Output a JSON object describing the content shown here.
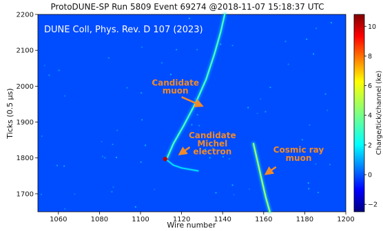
{
  "chart_data": {
    "type": "heatmap",
    "title": "ProtoDUNE-SP Run 5809 Event 69274 @2018-11-07 15:18:37 UTC",
    "xlabel": "Wire number",
    "ylabel": "Ticks (0.5 μs)",
    "xlim": [
      1050,
      1200
    ],
    "ylim": [
      1650,
      2200
    ],
    "x_ticks": [
      "1060",
      "1080",
      "1100",
      "1120",
      "1140",
      "1160",
      "1180",
      "1200"
    ],
    "y_ticks": [
      "1700",
      "1800",
      "1900",
      "2000",
      "2100",
      "2200"
    ],
    "x_tick_values": [
      1060,
      1080,
      1100,
      1120,
      1140,
      1160,
      1180,
      1200
    ],
    "y_tick_values": [
      1700,
      1800,
      1900,
      2000,
      2100,
      2200
    ],
    "colorbar": {
      "label": "Charge/tick/channel (ke)",
      "range": [
        -2.5,
        10.8
      ],
      "ticks": [
        "−2",
        "0",
        "2",
        "4",
        "6",
        "8",
        "10"
      ],
      "tick_values": [
        -2,
        0,
        2,
        4,
        6,
        8,
        10
      ],
      "colormap": "jet"
    },
    "tracks": [
      {
        "points": [
          [
            1141,
            2200
          ],
          [
            1139,
            2150
          ],
          [
            1136,
            2090
          ],
          [
            1132,
            2020
          ],
          [
            1127,
            1955
          ],
          [
            1121,
            1890
          ],
          [
            1116,
            1840
          ],
          [
            1113,
            1800
          ]
        ],
        "charge": 3.5
      },
      {
        "points": [
          [
            1112,
            1798
          ],
          [
            1116,
            1780
          ],
          [
            1120,
            1772
          ],
          [
            1124,
            1768
          ],
          [
            1128,
            1764
          ]
        ],
        "charge": 2.0
      },
      {
        "points": [
          [
            1155,
            1840
          ],
          [
            1157,
            1790
          ],
          [
            1159,
            1740
          ],
          [
            1161,
            1690
          ],
          [
            1163,
            1650
          ]
        ],
        "charge": 4.5
      }
    ],
    "hotspots": [
      {
        "x": 1112,
        "y": 1797,
        "charge": 10.0
      }
    ],
    "annotations": [
      {
        "text": "DUNE Coll, Phys. Rev. D 107 (2023)",
        "x": 1053,
        "y": 2150
      },
      {
        "text": "Candidate",
        "x": 1117,
        "y": 2002
      },
      {
        "text": "muon",
        "x": 1117,
        "y": 1980
      },
      {
        "text": "Candidate",
        "x": 1135,
        "y": 1855
      },
      {
        "text": "Michel",
        "x": 1135,
        "y": 1832
      },
      {
        "text": "electron",
        "x": 1135,
        "y": 1810
      },
      {
        "text": "Cosmic ray",
        "x": 1177,
        "y": 1815
      },
      {
        "text": "muon",
        "x": 1177,
        "y": 1792
      }
    ],
    "arrows": [
      {
        "from": [
          1120,
          1970
        ],
        "to": [
          1130,
          1945
        ]
      },
      {
        "from": [
          1124,
          1830
        ],
        "to": [
          1119,
          1810
        ]
      },
      {
        "from": [
          1166,
          1775
        ],
        "to": [
          1161,
          1755
        ]
      }
    ]
  }
}
